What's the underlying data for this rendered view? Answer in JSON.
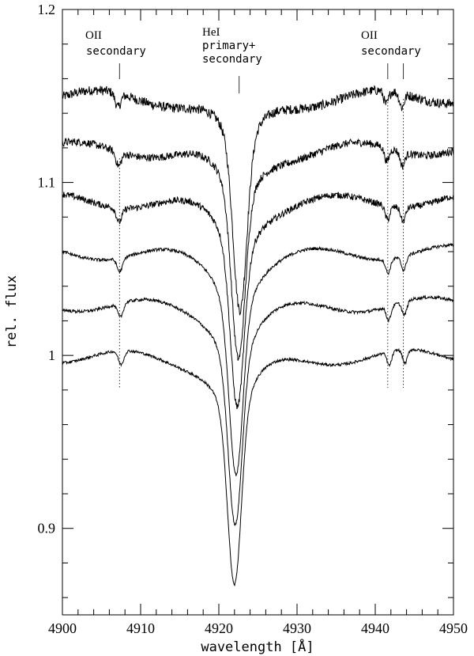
{
  "chart_data": {
    "type": "line",
    "title": "",
    "xlabel": "wavelength [Å]",
    "ylabel": "rel. flux",
    "xlim": [
      4900,
      4950
    ],
    "ylim": [
      0.85,
      1.2
    ],
    "xticks": [
      4900,
      4910,
      4920,
      4930,
      4940,
      4950
    ],
    "xtick_labels": [
      "4900",
      "4910",
      "4920",
      "4930",
      "4940",
      "4950"
    ],
    "yticks": [
      0.9,
      1.0,
      1.1,
      1.2
    ],
    "ytick_labels": [
      "0.9",
      "1",
      "1.1",
      "1.2"
    ],
    "x_minor_step": 2,
    "y_minor_step": 0.02,
    "grid": false,
    "series": [
      {
        "offset": 1.15,
        "center": 4922.7,
        "depth": 0.128,
        "noise": 0.0028
      },
      {
        "offset": 1.12,
        "center": 4922.5,
        "depth": 0.124,
        "noise": 0.0022
      },
      {
        "offset": 1.09,
        "center": 4922.35,
        "depth": 0.118,
        "noise": 0.0019
      },
      {
        "offset": 1.06,
        "center": 4922.2,
        "depth": 0.125,
        "noise": 0.0009
      },
      {
        "offset": 1.03,
        "center": 4922.1,
        "depth": 0.125,
        "noise": 0.0009
      },
      {
        "offset": 1.0,
        "center": 4922.0,
        "depth": 0.133,
        "noise": 0.0008
      }
    ],
    "annotations": [
      {
        "species": "OII",
        "label": "secondary",
        "x": 4907.3,
        "line": "dotted"
      },
      {
        "species": "HeI",
        "label": "primary+",
        "label2": "secondary",
        "x": 4922.6,
        "line": "tick"
      },
      {
        "species": "OII",
        "label": "secondary",
        "x": 4941.6,
        "x2": 4943.6,
        "line": "dotted"
      }
    ]
  }
}
